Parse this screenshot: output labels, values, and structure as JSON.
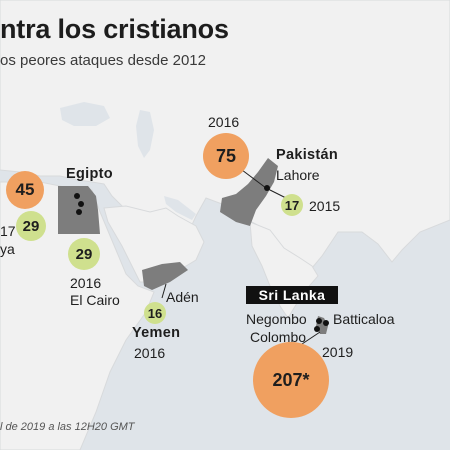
{
  "header": {
    "title": "ntra los cristianos",
    "subtitle": "os peores ataques desde 2012"
  },
  "colors": {
    "ocean": "#dfe4e9",
    "land": "#f1f1f1",
    "highlight_country": "#7d7d7d",
    "bubble_large": "#f0a060",
    "bubble_small": "#cfe08e"
  },
  "egypt": {
    "country": "Egipto",
    "attacks": [
      {
        "value": "45"
      },
      {
        "value": "29"
      },
      {
        "value": "29",
        "year": "2016",
        "place": "El Cairo"
      }
    ],
    "fragments": [
      "17",
      "ya"
    ]
  },
  "pakistan": {
    "country": "Pakistán",
    "attacks": [
      {
        "value": "75",
        "year": "2016",
        "place": "Lahore"
      },
      {
        "value": "17",
        "year": "2015"
      }
    ]
  },
  "yemen": {
    "country": "Yemen",
    "attack": {
      "value": "16",
      "place": "Adén",
      "year": "2016"
    }
  },
  "srilanka": {
    "country": "Sri Lanka",
    "places": [
      "Negombo",
      "Colombo",
      "Batticaloa"
    ],
    "year": "2019",
    "attack": {
      "value": "207*"
    }
  },
  "footer": {
    "note": "l de 2019 a las 12H20 GMT"
  }
}
